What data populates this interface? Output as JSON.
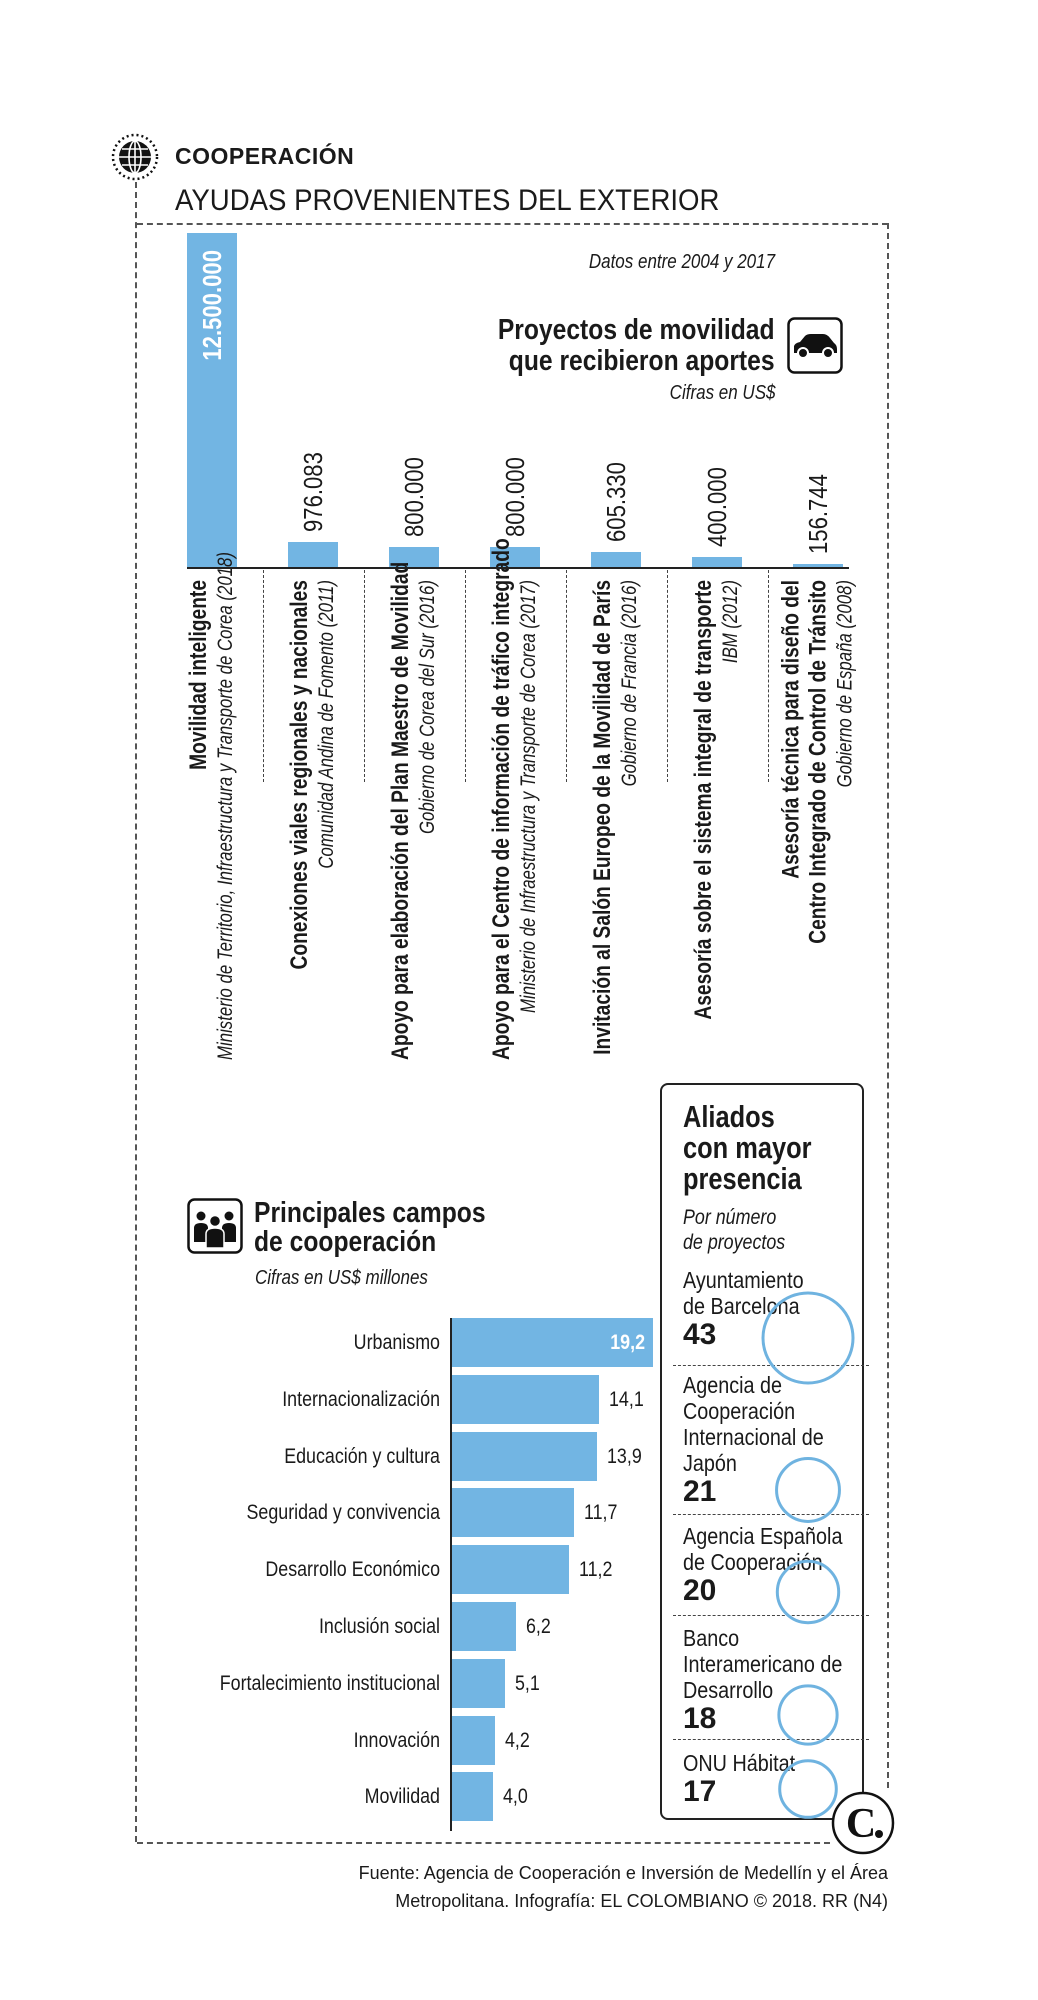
{
  "header": {
    "kicker": "COOPERACIÓN",
    "title": "AYUDAS PROVENIENTES DEL EXTERIOR",
    "icon": "globe-icon"
  },
  "mobility": {
    "date_note": "Datos entre 2004 y 2017",
    "title_line1": "Proyectos de movilidad",
    "title_line2": "que recibieron aportes",
    "units": "Cifras en US$",
    "icon": "car-icon"
  },
  "fields": {
    "title_line1": "Principales campos",
    "title_line2": "de cooperación",
    "units": "Cifras en US$ millones",
    "icon": "people-icon"
  },
  "colors": {
    "bar": "#72b5e3",
    "text": "#1a1a1a",
    "circle": "#6fb3e0"
  },
  "chart_data": [
    {
      "type": "bar",
      "orientation": "vertical",
      "units": "US$",
      "categories": [
        {
          "title_lines": [
            "Movilidad inteligente"
          ],
          "sponsor": "Ministerio de Territorio, Infraestructura y Transporte de Corea (2018)"
        },
        {
          "title_lines": [
            "Conexiones viales regionales y nacionales"
          ],
          "sponsor": "Comunidad Andina de Fomento (2011)"
        },
        {
          "title_lines": [
            "Apoyo para elaboración del Plan Maestro de Movilidad"
          ],
          "sponsor": "Gobierno de Corea del Sur (2016)"
        },
        {
          "title_lines": [
            "Apoyo para el Centro de información de tráfico integrado"
          ],
          "sponsor": "Ministerio de Infraestructura y Transporte de Corea (2017)"
        },
        {
          "title_lines": [
            "Invitación al Salón Europeo de la Movilidad de París"
          ],
          "sponsor": "Gobierno de Francia (2016)"
        },
        {
          "title_lines": [
            "Asesoría sobre el sistema integral de transporte"
          ],
          "sponsor": "IBM (2012)"
        },
        {
          "title_lines": [
            "Asesoría técnica para diseño del",
            "Centro Integrado de Control de Tránsito"
          ],
          "sponsor": "Gobierno de España (2008)"
        }
      ],
      "values": [
        12500000,
        976083,
        800000,
        800000,
        605330,
        400000,
        156744
      ],
      "value_labels": [
        "12.500.000",
        "976.083",
        "800.000",
        "800.000",
        "605.330",
        "400.000",
        "156.744"
      ]
    },
    {
      "type": "bar",
      "orientation": "horizontal",
      "units": "US$ millones",
      "categories": [
        "Urbanismo",
        "Internacionalización",
        "Educación y cultura",
        "Seguridad y convivencia",
        "Desarrollo Económico",
        "Inclusión social",
        "Fortalecimiento institucional",
        "Innovación",
        "Movilidad"
      ],
      "values": [
        19.2,
        14.1,
        13.9,
        11.7,
        11.2,
        6.2,
        5.1,
        4.2,
        4.0
      ],
      "value_labels": [
        "19,2",
        "14,1",
        "13,9",
        "11,7",
        "11,2",
        "6,2",
        "5,1",
        "4,2",
        "4,0"
      ]
    }
  ],
  "allies": {
    "title_lines": [
      "Aliados",
      "con mayor",
      "presencia"
    ],
    "subtitle_lines": [
      "Por número",
      "de proyectos"
    ],
    "items": [
      {
        "name_lines": [
          "Ayuntamiento",
          "de Barcelona"
        ],
        "count": 43,
        "count_label": "43"
      },
      {
        "name_lines": [
          "Agencia de",
          "Cooperación",
          "Internacional de",
          "Japón"
        ],
        "count": 21,
        "count_label": "21"
      },
      {
        "name_lines": [
          "Agencia Española",
          "de Cooperación"
        ],
        "count": 20,
        "count_label": "20"
      },
      {
        "name_lines": [
          "Banco",
          "Interamericano de",
          "Desarrollo"
        ],
        "count": 18,
        "count_label": "18"
      },
      {
        "name_lines": [
          "ONU Hábitat"
        ],
        "count": 17,
        "count_label": "17"
      }
    ]
  },
  "logo": {
    "text": "C."
  },
  "footer": {
    "line1": "Fuente: Agencia de Cooperación e Inversión de Medellín y el Área",
    "line2": "Metropolitana. Infografía: EL COLOMBIANO © 2018. RR (N4)"
  }
}
